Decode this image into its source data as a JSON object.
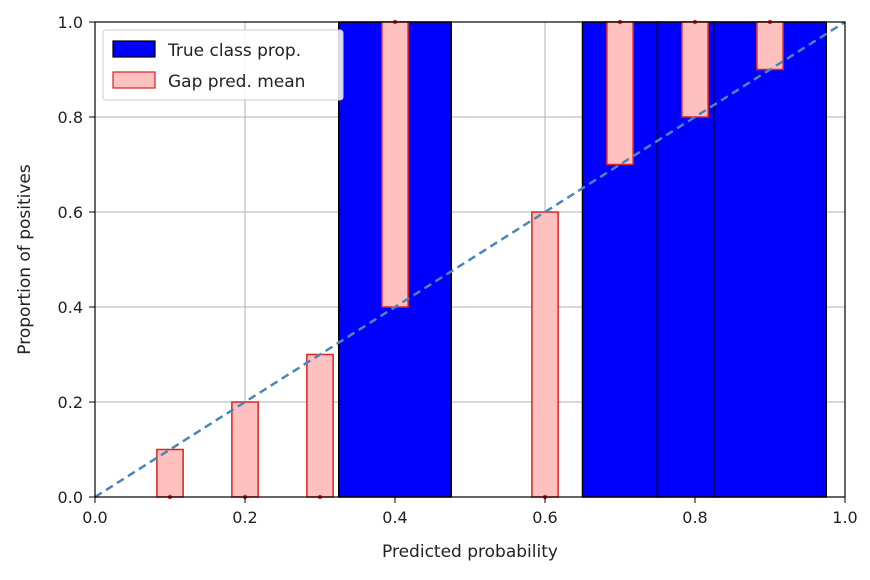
{
  "chart_data": {
    "type": "bar",
    "title": "",
    "xlabel": "Predicted probability",
    "ylabel": "Proportion of positives",
    "xlim": [
      0.0,
      1.0
    ],
    "ylim": [
      0.0,
      1.0
    ],
    "grid": true,
    "legend_position": "top-left",
    "xticks": [
      "0.0",
      "0.2",
      "0.4",
      "0.6",
      "0.8",
      "1.0"
    ],
    "yticks": [
      "0.0",
      "0.2",
      "0.4",
      "0.6",
      "0.8",
      "1.0"
    ],
    "series": [
      {
        "name": "True class prop.",
        "color": "#0000ff",
        "edge_color": "#000000",
        "bars": [
          {
            "x_start": 0.325,
            "x_end": 0.475,
            "value": 1.0
          },
          {
            "x_start": 0.65,
            "x_end": 0.75,
            "value": 1.0
          },
          {
            "x_start": 0.75,
            "x_end": 0.825,
            "value": 1.0
          },
          {
            "x_start": 0.825,
            "x_end": 0.975,
            "value": 1.0
          }
        ]
      },
      {
        "name": "Gap pred. mean",
        "color": "#ffc0c0",
        "edge_color": "#dd2222",
        "bar_width": 0.035,
        "bars": [
          {
            "x": 0.1,
            "bottom": 0.0,
            "top": 0.1
          },
          {
            "x": 0.2,
            "bottom": 0.0,
            "top": 0.2
          },
          {
            "x": 0.3,
            "bottom": 0.0,
            "top": 0.3
          },
          {
            "x": 0.4,
            "bottom": 0.4,
            "top": 1.0
          },
          {
            "x": 0.6,
            "bottom": 0.0,
            "top": 0.6
          },
          {
            "x": 0.7,
            "bottom": 0.7,
            "top": 1.0
          },
          {
            "x": 0.8,
            "bottom": 0.8,
            "top": 1.0
          },
          {
            "x": 0.9,
            "bottom": 0.9,
            "top": 1.0
          }
        ]
      }
    ],
    "reference_line": {
      "x": [
        0.0,
        1.0
      ],
      "y": [
        0.0,
        1.0
      ],
      "color": "#4c86b8",
      "style": "dashed"
    }
  }
}
